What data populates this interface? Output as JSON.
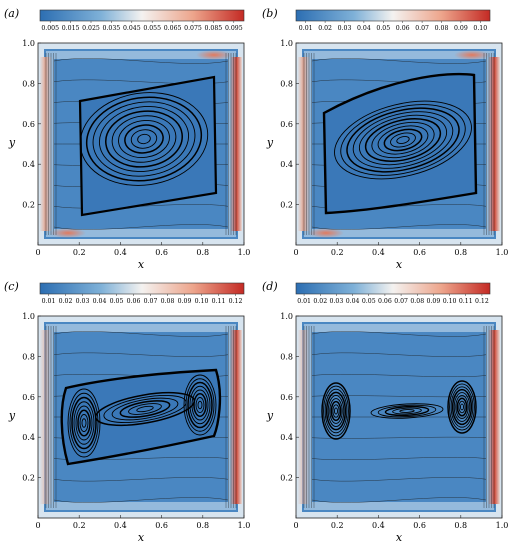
{
  "colormap": {
    "low": "#2c6eb2",
    "mid": "#f4f2f0",
    "high": "#c42a24",
    "contour": "#000000"
  },
  "panels": [
    {
      "id": "a",
      "label": "(a)",
      "colorbar_ticks": [
        "0.005",
        "0.015",
        "0.025",
        "0.035",
        "0.045",
        "0.055",
        "0.065",
        "0.075",
        "0.085",
        "0.095"
      ],
      "x_ticks": [
        "0",
        "0.2",
        "0.4",
        "0.6",
        "0.8",
        "1.0"
      ],
      "y_ticks": [
        "0.2",
        "0.4",
        "0.6",
        "0.8",
        "1.0"
      ],
      "x_origin": "0",
      "xlabel": "x",
      "ylabel": "y"
    },
    {
      "id": "b",
      "label": "(b)",
      "colorbar_ticks": [
        "0.01",
        "0.02",
        "0.03",
        "0.04",
        "0.05",
        "0.06",
        "0.07",
        "0.08",
        "0.09",
        "0.10"
      ],
      "x_ticks": [
        "0",
        "0.2",
        "0.4",
        "0.6",
        "0.8",
        "1.0"
      ],
      "y_ticks": [
        "0.2",
        "0.4",
        "0.6",
        "0.8",
        "1.0"
      ],
      "x_origin": "0",
      "xlabel": "x",
      "ylabel": "y"
    },
    {
      "id": "c",
      "label": "(c)",
      "colorbar_ticks": [
        "0.01",
        "0.02",
        "0.03",
        "0.04",
        "0.05",
        "0.06",
        "0.07",
        "0.08",
        "0.09",
        "0.10",
        "0.11",
        "0.12"
      ],
      "x_ticks": [
        "0",
        "0.2",
        "0.4",
        "0.6",
        "0.8",
        "1.0"
      ],
      "y_ticks": [
        "0.2",
        "0.4",
        "0.6",
        "0.8",
        "1.0"
      ],
      "x_origin": "0",
      "xlabel": "x",
      "ylabel": "y"
    },
    {
      "id": "d",
      "label": "(d)",
      "colorbar_ticks": [
        "0.01",
        "0.02",
        "0.03",
        "0.04",
        "0.05",
        "0.06",
        "0.07",
        "0.08",
        "0.09",
        "0.10",
        "0.11",
        "0.12"
      ],
      "x_ticks": [
        "0",
        "0.2",
        "0.4",
        "0.6",
        "0.8",
        "1.0"
      ],
      "y_ticks": [
        "0.2",
        "0.4",
        "0.6",
        "0.8",
        "1.0"
      ],
      "x_origin": "0",
      "xlabel": "x",
      "ylabel": "y"
    }
  ]
}
